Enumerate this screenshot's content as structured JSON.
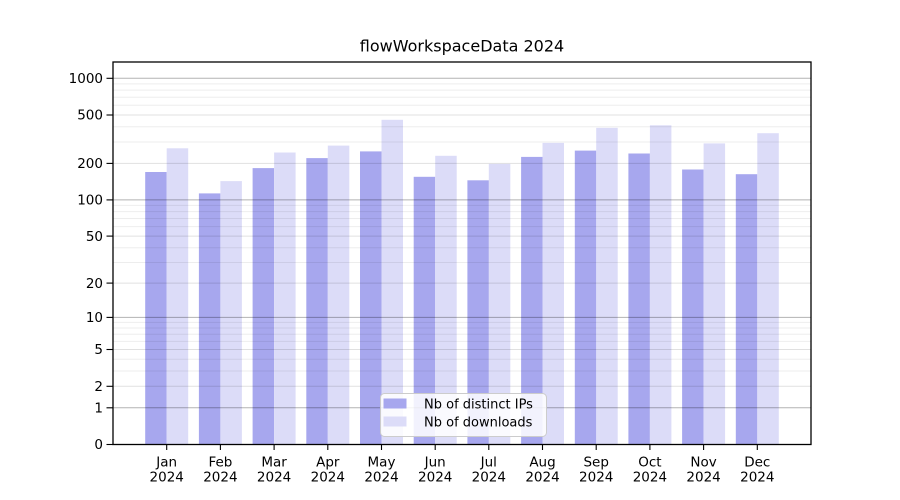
{
  "page": {
    "background": "#ffffff"
  },
  "chart_data": {
    "type": "bar",
    "title": "flowWorkspaceData 2024",
    "categories": [
      "Jan",
      "Feb",
      "Mar",
      "Apr",
      "May",
      "Jun",
      "Jul",
      "Aug",
      "Sep",
      "Oct",
      "Nov",
      "Dec"
    ],
    "category_year": "2024",
    "series": [
      {
        "key": "distinct-ips",
        "name": "Nb of distinct IPs",
        "color": "#a7a7ee",
        "values": [
          170,
          113,
          183,
          221,
          251,
          155,
          145,
          226,
          255,
          241,
          178,
          163
        ]
      },
      {
        "key": "downloads",
        "name": "Nb of downloads",
        "color": "#dcdcf8",
        "values": [
          266,
          143,
          246,
          280,
          456,
          231,
          198,
          295,
          392,
          411,
          292,
          354
        ]
      }
    ],
    "yaxis": {
      "scale": "log1p",
      "ticks": [
        0,
        1,
        2,
        5,
        10,
        20,
        50,
        100,
        200,
        500,
        1000
      ],
      "power_ticks": [
        1,
        10,
        100,
        1000
      ],
      "max": 1360
    },
    "xaxis": {
      "label_line2": "2024"
    },
    "legend": {
      "position": "bottom-center"
    },
    "grid": "horizontal",
    "colors": {
      "axis": "#000000",
      "grid_major": "rgba(0,0,0,0.30)",
      "grid_labeled": "rgba(0,0,0,0.12)",
      "grid_minor": "rgba(0,0,0,0.07)",
      "legend_border": "#cccccc"
    }
  }
}
